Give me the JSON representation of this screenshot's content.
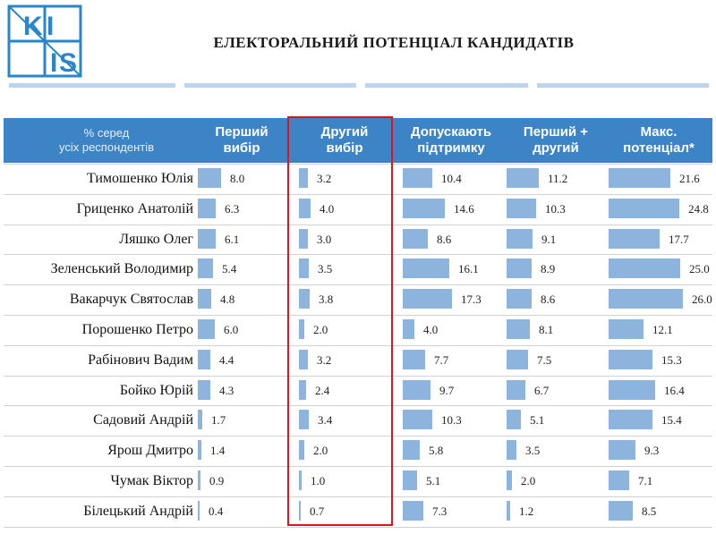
{
  "header": {
    "title": "ЕЛЕКТОРАЛЬНИЙ ПОТЕНЦІАЛ КАНДИДАТІВ",
    "logo_text": "KIIS"
  },
  "colors": {
    "header_band": "#3d84c6",
    "bars": "#8db4dc",
    "highlight": "#e0141d",
    "decor": "#bdd5ec"
  },
  "chart_data": {
    "type": "table",
    "row_header": [
      "% серед",
      "усіх респондентів"
    ],
    "columns": [
      {
        "label": [
          "Перший",
          "вибір"
        ]
      },
      {
        "label": [
          "Другий",
          "вибір"
        ]
      },
      {
        "label": [
          "Допускають",
          "підтримку"
        ]
      },
      {
        "label": [
          "Перший +",
          "другий"
        ]
      },
      {
        "label": [
          "Макс.",
          "потенціал*"
        ]
      }
    ],
    "rows": [
      {
        "name": "Тимошенко Юлія",
        "values": [
          "8.0",
          "3.2",
          "10.4",
          "11.2",
          "21.6"
        ]
      },
      {
        "name": "Гриценко Анатолій",
        "values": [
          "6.3",
          "4.0",
          "14.6",
          "10.3",
          "24.8"
        ]
      },
      {
        "name": "Ляшко Олег",
        "values": [
          "6.1",
          "3.0",
          "8.6",
          "9.1",
          "17.7"
        ]
      },
      {
        "name": "Зеленський Володимир",
        "values": [
          "5.4",
          "3.5",
          "16.1",
          "8.9",
          "25.0"
        ]
      },
      {
        "name": "Вакарчук Святослав",
        "values": [
          "4.8",
          "3.8",
          "17.3",
          "8.6",
          "26.0"
        ]
      },
      {
        "name": "Порошенко Петро",
        "values": [
          "6.0",
          "2.0",
          "4.0",
          "8.1",
          "12.1"
        ]
      },
      {
        "name": "Рабінович Вадим",
        "values": [
          "4.4",
          "3.2",
          "7.7",
          "7.5",
          "15.3"
        ]
      },
      {
        "name": "Бойко Юрій",
        "values": [
          "4.3",
          "2.4",
          "9.7",
          "6.7",
          "16.4"
        ]
      },
      {
        "name": "Садовий Андрій",
        "values": [
          "1.7",
          "3.4",
          "10.3",
          "5.1",
          "15.4"
        ]
      },
      {
        "name": "Ярош Дмитро",
        "values": [
          "1.4",
          "2.0",
          "5.8",
          "3.5",
          "9.3"
        ]
      },
      {
        "name": "Чумак Віктор",
        "values": [
          "0.9",
          "1.0",
          "5.1",
          "2.0",
          "7.1"
        ]
      },
      {
        "name": "Білецький Андрій",
        "values": [
          "0.4",
          "0.7",
          "7.3",
          "1.2",
          "8.5"
        ]
      }
    ],
    "highlighted_column": 1
  }
}
